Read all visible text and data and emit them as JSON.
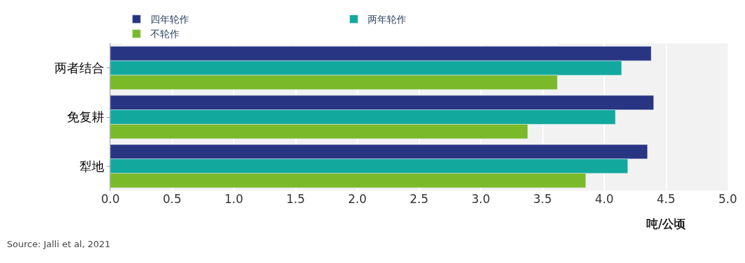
{
  "chart_data": {
    "type": "bar",
    "orientation": "horizontal",
    "categories": [
      "两者结合",
      "免复耕",
      "犁地"
    ],
    "series": [
      {
        "name": "四年轮作",
        "color": "#283583",
        "values": [
          4.38,
          4.4,
          4.35
        ]
      },
      {
        "name": "两年轮作",
        "color": "#12a89d",
        "values": [
          4.14,
          4.09,
          4.19
        ]
      },
      {
        "name": "不轮作",
        "color": "#7ab929",
        "values": [
          3.62,
          3.38,
          3.85
        ]
      }
    ],
    "xlim": [
      0,
      5
    ],
    "xticks": [
      {
        "value": 0,
        "label": "0.0"
      },
      0.5,
      {
        "value": 1,
        "label": "1.0"
      },
      1.5,
      {
        "value": 2,
        "label": "2.0"
      },
      2.5,
      {
        "value": 3,
        "label": "3.0"
      },
      3.5,
      {
        "value": 4,
        "label": "4.0"
      },
      4.5,
      {
        "value": 5,
        "label": "5.0"
      }
    ],
    "xlabel": "吨/公顷",
    "grid": "x",
    "legend": "top",
    "annotations": [
      "Source: Jalli et al, 2021"
    ]
  }
}
